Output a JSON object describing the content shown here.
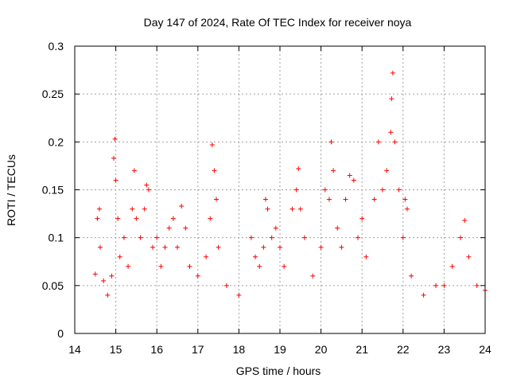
{
  "chart_data": {
    "type": "scatter",
    "title": "Day 147 of 2024, Rate Of TEC Index for receiver noya",
    "xlabel": "GPS time / hours",
    "ylabel": "ROTI / TECUs",
    "xlim": [
      14,
      24
    ],
    "ylim": [
      0,
      0.3
    ],
    "xticks": [
      14,
      15,
      16,
      17,
      18,
      19,
      20,
      21,
      22,
      23,
      24
    ],
    "xtick_labels": [
      "14",
      "15",
      "16",
      "17",
      "18",
      "19",
      "20",
      "21",
      "22",
      "23",
      "24"
    ],
    "yticks": [
      0,
      0.05,
      0.1,
      0.15,
      0.2,
      0.25,
      0.3
    ],
    "ytick_labels": [
      "0",
      "0.05",
      "0.1",
      "0.15",
      "0.2",
      "0.25",
      "0.3"
    ],
    "grid": true,
    "marker": "+",
    "color": "#ff0000",
    "series": [
      {
        "name": "ROTI",
        "points": [
          [
            14.5,
            0.062
          ],
          [
            14.55,
            0.12
          ],
          [
            14.6,
            0.13
          ],
          [
            14.62,
            0.09
          ],
          [
            14.7,
            0.055
          ],
          [
            14.8,
            0.04
          ],
          [
            14.9,
            0.06
          ],
          [
            14.95,
            0.183
          ],
          [
            14.98,
            0.203
          ],
          [
            15.0,
            0.16
          ],
          [
            15.05,
            0.12
          ],
          [
            15.1,
            0.08
          ],
          [
            15.2,
            0.1
          ],
          [
            15.3,
            0.07
          ],
          [
            15.4,
            0.13
          ],
          [
            15.45,
            0.17
          ],
          [
            15.5,
            0.12
          ],
          [
            15.6,
            0.1
          ],
          [
            15.7,
            0.13
          ],
          [
            15.75,
            0.155
          ],
          [
            15.8,
            0.15
          ],
          [
            15.9,
            0.09
          ],
          [
            16.0,
            0.1
          ],
          [
            16.1,
            0.07
          ],
          [
            16.2,
            0.09
          ],
          [
            16.3,
            0.11
          ],
          [
            16.4,
            0.12
          ],
          [
            16.5,
            0.09
          ],
          [
            16.6,
            0.133
          ],
          [
            16.7,
            0.11
          ],
          [
            16.8,
            0.07
          ],
          [
            17.0,
            0.06
          ],
          [
            17.2,
            0.08
          ],
          [
            17.3,
            0.12
          ],
          [
            17.35,
            0.197
          ],
          [
            17.4,
            0.17
          ],
          [
            17.45,
            0.14
          ],
          [
            17.5,
            0.09
          ],
          [
            17.7,
            0.05
          ],
          [
            18.0,
            0.04
          ],
          [
            18.3,
            0.1
          ],
          [
            18.4,
            0.08
          ],
          [
            18.5,
            0.07
          ],
          [
            18.6,
            0.09
          ],
          [
            18.65,
            0.14
          ],
          [
            18.7,
            0.13
          ],
          [
            18.8,
            0.1
          ],
          [
            18.9,
            0.11
          ],
          [
            19.0,
            0.09
          ],
          [
            19.1,
            0.07
          ],
          [
            19.3,
            0.13
          ],
          [
            19.4,
            0.15
          ],
          [
            19.45,
            0.172
          ],
          [
            19.5,
            0.13
          ],
          [
            19.6,
            0.1
          ],
          [
            19.8,
            0.06
          ],
          [
            20.0,
            0.09
          ],
          [
            20.1,
            0.15
          ],
          [
            20.2,
            0.14
          ],
          [
            20.25,
            0.2
          ],
          [
            20.3,
            0.17
          ],
          [
            20.4,
            0.11
          ],
          [
            20.5,
            0.09
          ],
          [
            20.6,
            0.14
          ],
          [
            20.7,
            0.165
          ],
          [
            20.8,
            0.16
          ],
          [
            20.9,
            0.1
          ],
          [
            21.0,
            0.12
          ],
          [
            21.1,
            0.08
          ],
          [
            21.3,
            0.14
          ],
          [
            21.4,
            0.2
          ],
          [
            21.5,
            0.15
          ],
          [
            21.6,
            0.17
          ],
          [
            21.7,
            0.21
          ],
          [
            21.72,
            0.245
          ],
          [
            21.75,
            0.272
          ],
          [
            21.8,
            0.2
          ],
          [
            21.9,
            0.15
          ],
          [
            22.0,
            0.1
          ],
          [
            22.05,
            0.14
          ],
          [
            22.1,
            0.13
          ],
          [
            22.2,
            0.06
          ],
          [
            22.5,
            0.04
          ],
          [
            22.8,
            0.05
          ],
          [
            23.0,
            0.05
          ],
          [
            23.2,
            0.07
          ],
          [
            23.4,
            0.1
          ],
          [
            23.5,
            0.118
          ],
          [
            23.6,
            0.08
          ],
          [
            23.8,
            0.05
          ],
          [
            24.0,
            0.045
          ]
        ]
      }
    ]
  }
}
